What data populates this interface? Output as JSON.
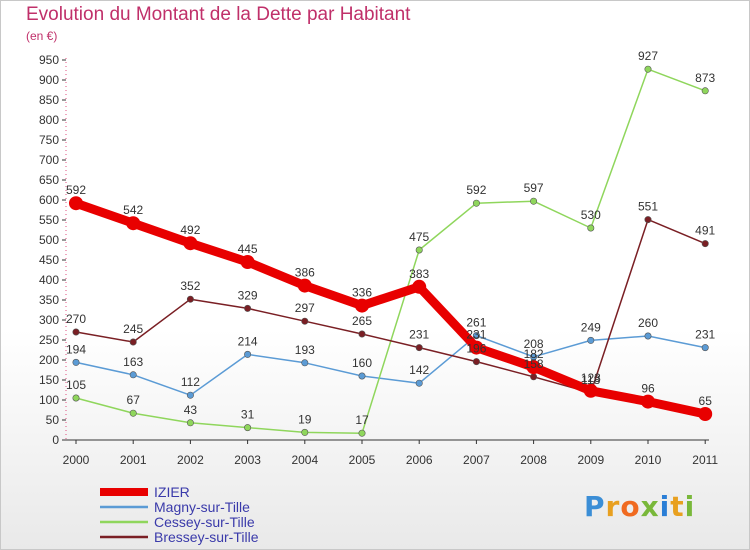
{
  "title": "Evolution du Montant de la Dette par Habitant",
  "subtitle": "(en €)",
  "logo": {
    "text": "Proxiti",
    "colors": [
      "#3b8ed6",
      "#e8a020",
      "#f06a20",
      "#79b83a",
      "#2a7ed6",
      "#e8a020",
      "#79b83a"
    ]
  },
  "chart_data": {
    "type": "line",
    "title": "Evolution du Montant de la Dette par Habitant",
    "ylabel": "(en €)",
    "xlabel": "",
    "x": [
      "2000",
      "2001",
      "2002",
      "2003",
      "2004",
      "2005",
      "2006",
      "2007",
      "2008",
      "2009",
      "2010",
      "2011"
    ],
    "ylim": [
      0,
      950
    ],
    "yticks": [
      0,
      50,
      100,
      150,
      200,
      250,
      300,
      350,
      400,
      450,
      500,
      550,
      600,
      650,
      700,
      750,
      800,
      850,
      900,
      950
    ],
    "grid": false,
    "legend_position": "bottom-left",
    "series": [
      {
        "name": "IZIER",
        "color": "#e80000",
        "width": 9,
        "marker": 7,
        "values": [
          592,
          542,
          492,
          445,
          386,
          336,
          383,
          231,
          182,
          123,
          96,
          65
        ],
        "labels": [
          "592",
          "542",
          "492",
          "445",
          "386",
          "336",
          "383",
          "231",
          "182",
          "123",
          "96",
          "65"
        ]
      },
      {
        "name": "Magny-sur-Tille",
        "color": "#5b9bd5",
        "width": 1.5,
        "marker": 3.2,
        "values": [
          194,
          163,
          112,
          214,
          193,
          160,
          142,
          261,
          208,
          249,
          260,
          231
        ],
        "labels": [
          "194",
          "163",
          "112",
          "214",
          "193",
          "160",
          "142",
          "261",
          "208",
          "249",
          "260",
          "231"
        ]
      },
      {
        "name": "Cessey-sur-Tille",
        "color": "#8fd65c",
        "width": 1.5,
        "marker": 3.2,
        "values": [
          105,
          67,
          43,
          31,
          19,
          17,
          475,
          592,
          597,
          530,
          927,
          873
        ],
        "labels": [
          "105",
          "67",
          "43",
          "31",
          "19",
          "17",
          "475",
          "592",
          "597",
          "530",
          "927",
          "873"
        ]
      },
      {
        "name": "Bressey-sur-Tille",
        "color": "#7a1f24",
        "width": 1.5,
        "marker": 3.2,
        "values": [
          270,
          245,
          352,
          329,
          297,
          265,
          231,
          196,
          158,
          118,
          551,
          491
        ],
        "labels": [
          "270",
          "245",
          "352",
          "329",
          "297",
          "265",
          "231",
          "196",
          "158",
          "118",
          "551",
          "491"
        ]
      }
    ]
  }
}
